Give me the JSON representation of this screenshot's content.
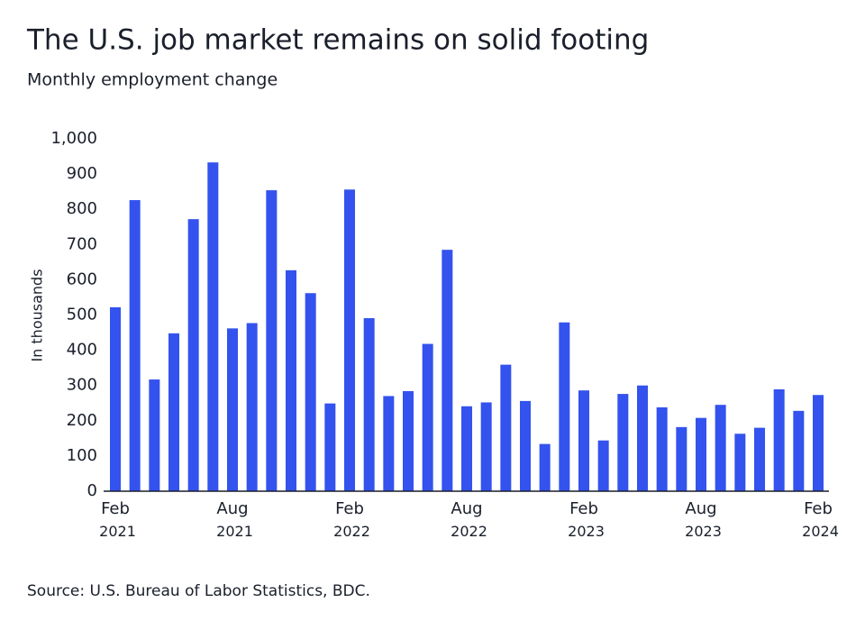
{
  "chart_data": {
    "type": "bar",
    "title": "The U.S. job market remains on solid footing",
    "subtitle": "Monthly employment change",
    "y_label": "In thousands",
    "source": "Source: U.S. Bureau of Labor Statistics, BDC.",
    "color": "#3352ee",
    "grid": false,
    "categories": [
      "Feb 2021",
      null,
      null,
      null,
      null,
      null,
      "Aug 2021",
      null,
      null,
      null,
      null,
      null,
      "Feb 2022",
      null,
      null,
      null,
      null,
      null,
      "Aug 2022",
      null,
      null,
      null,
      null,
      null,
      "Feb 2023",
      null,
      null,
      null,
      null,
      null,
      "Aug 2023",
      null,
      null,
      null,
      null,
      null,
      "Feb 2024"
    ],
    "values": [
      522,
      826,
      317,
      448,
      772,
      933,
      462,
      477,
      854,
      627,
      562,
      249,
      856,
      491,
      270,
      284,
      418,
      685,
      241,
      252,
      359,
      256,
      134,
      479,
      286,
      144,
      276,
      300,
      238,
      182,
      208,
      245,
      163,
      180,
      289,
      228,
      273
    ],
    "ylim": [
      0,
      1000
    ],
    "yticks": [
      0,
      100,
      200,
      300,
      400,
      500,
      600,
      700,
      800,
      900,
      {
        "value": 1000,
        "label": "1,000"
      }
    ]
  }
}
